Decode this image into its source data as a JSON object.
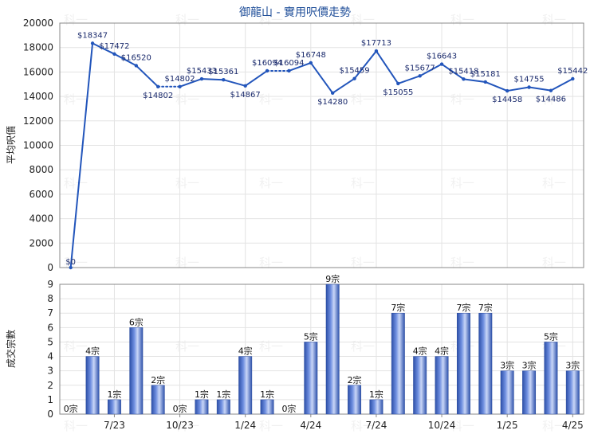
{
  "chart_data": [
    {
      "type": "line",
      "title": "御龍山 - 實用呎價走勢",
      "ylabel": "平均呎價",
      "ylim": [
        0,
        20000
      ],
      "yticks": [
        0,
        2000,
        4000,
        6000,
        8000,
        10000,
        12000,
        14000,
        16000,
        18000,
        20000
      ],
      "values": [
        0,
        18347,
        17472,
        16520,
        14802,
        14802,
        15433,
        15361,
        14867,
        16094,
        16094,
        16748,
        14280,
        15459,
        17713,
        15055,
        15677,
        16643,
        15418,
        15181,
        14458,
        14755,
        14486,
        15442
      ],
      "labels": [
        "$0",
        "$18347",
        "$17472",
        "$16520",
        "$14802",
        "$14802",
        "$15433",
        "$15361",
        "$14867",
        "$16094",
        "$16094",
        "$16748",
        "$14280",
        "$15459",
        "$17713",
        "$15055",
        "$15677",
        "$16643",
        "$15418",
        "$15181",
        "$14458",
        "$14755",
        "$14486",
        "$15442"
      ],
      "no_transaction_months": [
        0,
        5,
        10
      ],
      "color": "#2255bb"
    },
    {
      "type": "bar",
      "ylabel": "成交宗數",
      "ylim": [
        0,
        9
      ],
      "yticks": [
        0,
        1,
        2,
        3,
        4,
        5,
        6,
        7,
        8,
        9
      ],
      "categories": [
        "",
        "",
        "7/23",
        "",
        "",
        "10/23",
        "",
        "",
        "1/24",
        "",
        "",
        "4/24",
        "",
        "",
        "7/24",
        "",
        "",
        "10/24",
        "",
        "",
        "1/25",
        "",
        "",
        "4/25"
      ],
      "values": [
        0,
        4,
        1,
        6,
        2,
        0,
        1,
        1,
        4,
        1,
        0,
        5,
        9,
        2,
        1,
        7,
        4,
        4,
        7,
        7,
        3,
        3,
        5,
        3
      ],
      "labels": [
        "0宗",
        "4宗",
        "1宗",
        "6宗",
        "2宗",
        "0宗",
        "1宗",
        "1宗",
        "4宗",
        "1宗",
        "0宗",
        "5宗",
        "9宗",
        "2宗",
        "1宗",
        "7宗",
        "4宗",
        "4宗",
        "7宗",
        "7宗",
        "3宗",
        "3宗",
        "5宗",
        "3宗"
      ],
      "color": "#3a5fc0"
    }
  ],
  "watermark": "科一"
}
